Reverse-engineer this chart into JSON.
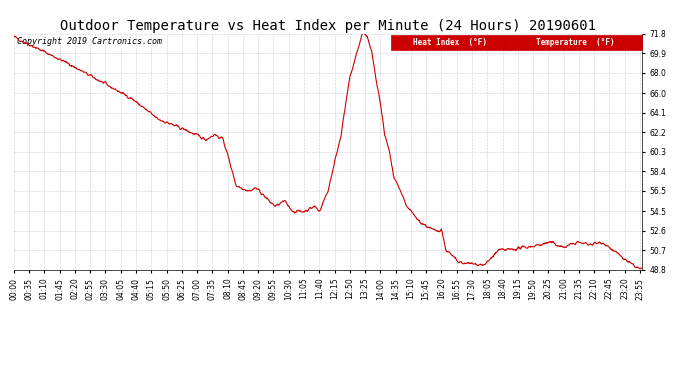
{
  "title": "Outdoor Temperature vs Heat Index per Minute (24 Hours) 20190601",
  "copyright_text": "Copyright 2019 Cartronics.com",
  "ylim": [
    48.8,
    71.8
  ],
  "yticks": [
    48.8,
    50.7,
    52.6,
    54.5,
    56.5,
    58.4,
    60.3,
    62.2,
    64.1,
    66.0,
    68.0,
    69.9,
    71.8
  ],
  "line_color": "#cc0000",
  "background_color": "#ffffff",
  "grid_color": "#cccccc",
  "title_fontsize": 10,
  "tick_fontsize": 5.5,
  "copyright_fontsize": 6.0,
  "xtick_interval_minutes": 35,
  "total_minutes": 1440,
  "control_minutes": [
    0,
    120,
    270,
    330,
    390,
    440,
    460,
    480,
    510,
    540,
    555,
    570,
    585,
    600,
    620,
    640,
    665,
    690,
    700,
    720,
    750,
    770,
    790,
    800,
    810,
    820,
    840,
    850,
    860,
    870,
    900,
    930,
    960,
    970,
    980,
    990,
    1020,
    1080,
    1110,
    1140,
    1170,
    1200,
    1230,
    1260,
    1290,
    1320,
    1350,
    1380,
    1410,
    1435
  ],
  "control_temps": [
    71.5,
    69.0,
    65.5,
    63.5,
    62.5,
    61.5,
    62.0,
    61.5,
    57.0,
    56.5,
    56.8,
    56.2,
    55.5,
    55.0,
    55.5,
    54.5,
    54.5,
    55.0,
    54.5,
    56.5,
    62.0,
    67.5,
    70.5,
    72.0,
    71.5,
    70.0,
    65.0,
    62.0,
    60.5,
    58.0,
    55.0,
    53.5,
    52.7,
    52.6,
    52.8,
    50.8,
    49.5,
    49.3,
    50.7,
    50.8,
    51.0,
    51.2,
    51.5,
    51.0,
    51.5,
    51.3,
    51.5,
    50.5,
    49.5,
    48.9
  ],
  "noise_seed": 42,
  "noise_std": 0.15,
  "noise_smooth_window": 5
}
